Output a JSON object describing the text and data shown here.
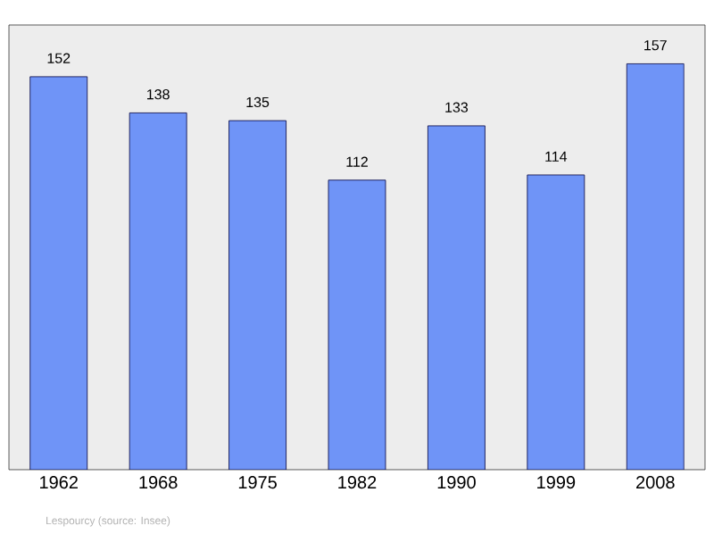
{
  "chart_data": {
    "type": "bar",
    "categories": [
      "1962",
      "1968",
      "1975",
      "1982",
      "1990",
      "1999",
      "2008"
    ],
    "values": [
      152,
      138,
      135,
      112,
      133,
      114,
      157
    ],
    "color": "#6f94f7",
    "ylim": [
      0,
      172
    ],
    "data_labels": true,
    "annotations": [
      "Lespourcy    (source: Insee)"
    ]
  }
}
